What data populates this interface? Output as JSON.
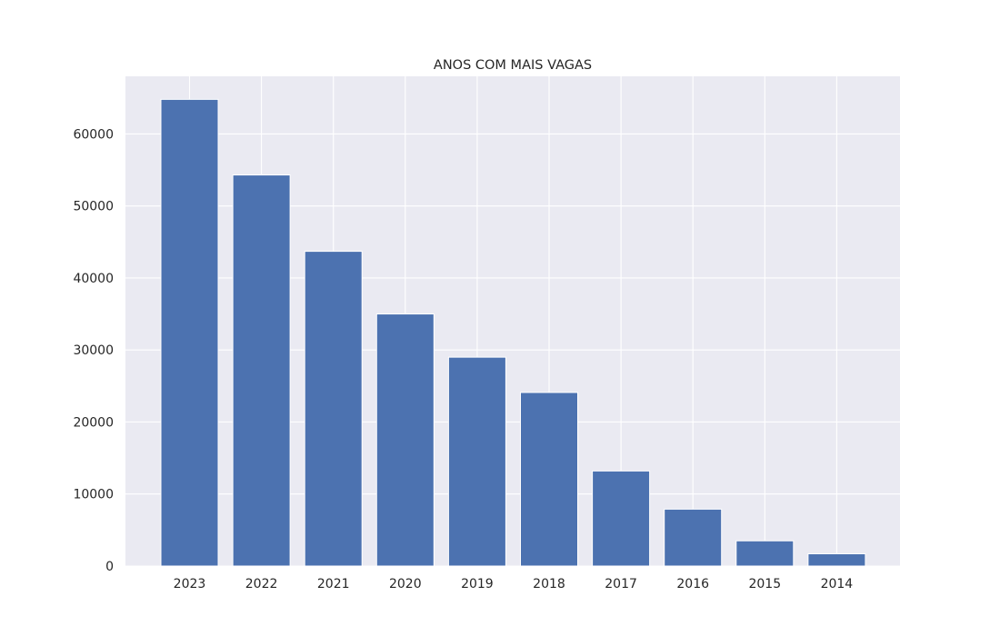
{
  "chart_data": {
    "type": "bar",
    "title": "ANOS COM MAIS VAGAS",
    "xlabel": "",
    "ylabel": "",
    "categories": [
      "2023",
      "2022",
      "2021",
      "2020",
      "2019",
      "2018",
      "2017",
      "2016",
      "2015",
      "2014"
    ],
    "values": [
      64800,
      54300,
      43700,
      35000,
      29000,
      24100,
      13200,
      7900,
      3500,
      1700
    ],
    "ylim": [
      0,
      68000
    ],
    "yticks": [
      0,
      10000,
      20000,
      30000,
      40000,
      50000,
      60000
    ],
    "grid": true,
    "colors": {
      "bar": "#4c72b0",
      "background": "#eaeaf2",
      "grid": "#ffffff",
      "text": "#262626"
    }
  }
}
